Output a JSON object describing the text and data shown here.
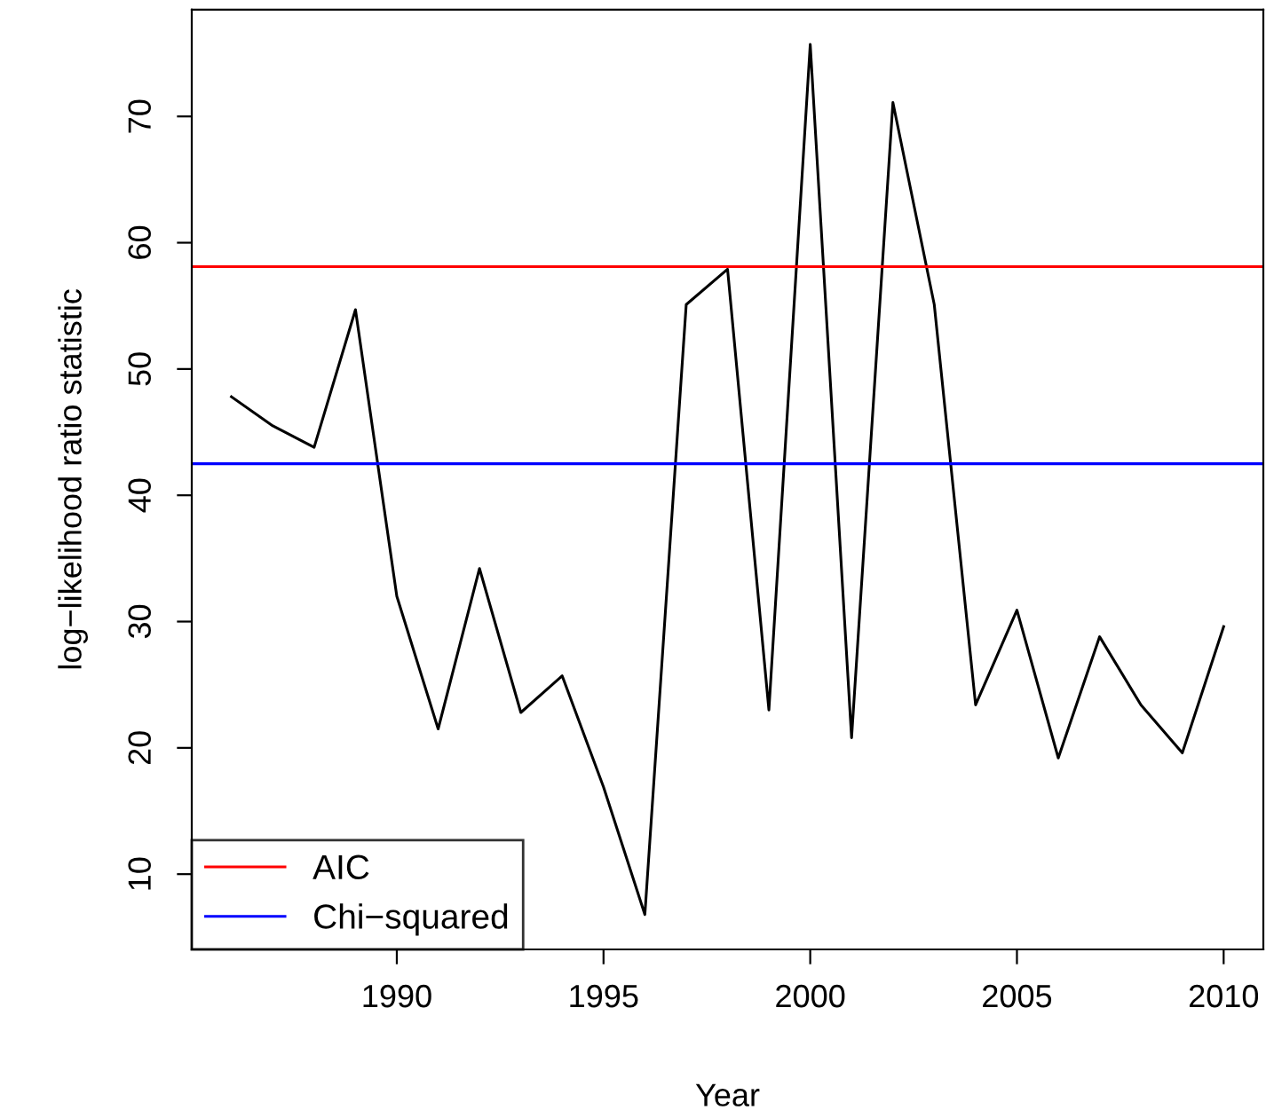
{
  "chart_data": {
    "type": "line",
    "xlabel": "Year",
    "ylabel": "log−likelihood ratio statistic",
    "x": [
      1986,
      1987,
      1988,
      1989,
      1990,
      1991,
      1992,
      1993,
      1994,
      1995,
      1996,
      1997,
      1998,
      1999,
      2000,
      2001,
      2002,
      2003,
      2004,
      2005,
      2006,
      2007,
      2008,
      2009,
      2010
    ],
    "series": [
      {
        "color": "#000000",
        "values": [
          47.8,
          45.5,
          43.8,
          54.7,
          32.0,
          21.5,
          34.2,
          22.8,
          25.7,
          16.9,
          6.8,
          55.1,
          57.9,
          23.0,
          75.7,
          20.8,
          71.1,
          55.1,
          23.4,
          30.9,
          19.2,
          28.8,
          23.4,
          19.6,
          29.6
        ]
      }
    ],
    "ref_lines": [
      {
        "axis": "y",
        "value": 58.1,
        "label": "AIC",
        "color": "#ff0000"
      },
      {
        "axis": "y",
        "value": 42.5,
        "label": "Chi−squared",
        "color": "#0000ff"
      }
    ],
    "xlim": [
      1985.04,
      2010.96
    ],
    "ylim": [
      4.04,
      78.46
    ],
    "xticks": [
      1990,
      1995,
      2000,
      2005,
      2010
    ],
    "yticks": [
      10,
      20,
      30,
      40,
      50,
      60,
      70
    ],
    "grid": false,
    "legend": "bottom left",
    "marker": "none",
    "line_style": "solid"
  }
}
